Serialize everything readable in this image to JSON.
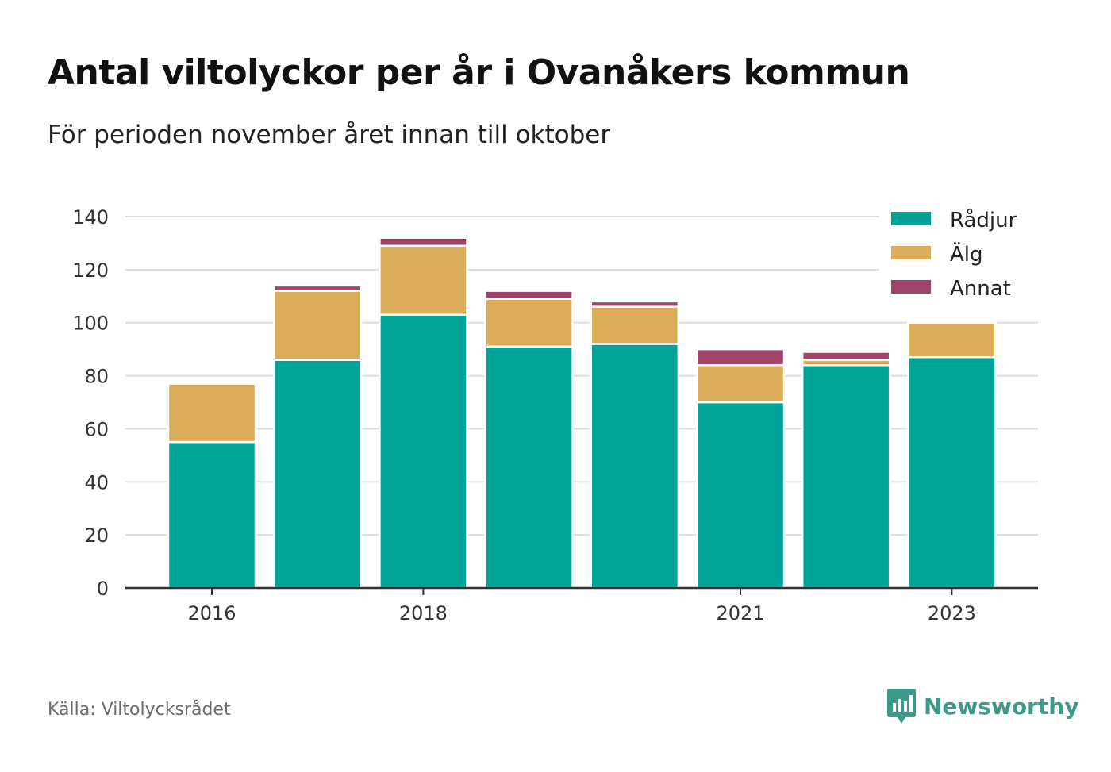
{
  "header": {
    "title": "Antal viltolyckor per år i Ovanåkers kommun",
    "subtitle": "För perioden november året innan till oktober"
  },
  "footer": {
    "source": "Källa: Viltolycksrådet",
    "brand": "Newsworthy",
    "brand_icon": "newsworthy-logo-icon"
  },
  "colors": {
    "radjur": "#00a398",
    "alg": "#dbac59",
    "annat": "#a1426a",
    "grid": "#dddddd",
    "axis": "#333333",
    "brand": "#3d9a8b"
  },
  "chart_data": {
    "type": "bar",
    "stacked": true,
    "categories": [
      "2016",
      "2017",
      "2018",
      "2019",
      "2020",
      "2021",
      "2022",
      "2023"
    ],
    "x_tick_labels": [
      "2016",
      "2018",
      "2021",
      "2023"
    ],
    "series": [
      {
        "name": "Rådjur",
        "color": "#00a398",
        "values": [
          55,
          86,
          103,
          91,
          92,
          70,
          84,
          87
        ]
      },
      {
        "name": "Älg",
        "color": "#dbac59",
        "values": [
          22,
          26,
          26,
          18,
          14,
          14,
          2,
          13
        ]
      },
      {
        "name": "Annat",
        "color": "#a1426a",
        "values": [
          0,
          2,
          3,
          3,
          2,
          6,
          3,
          0
        ]
      }
    ],
    "y_ticks": [
      "0",
      "20",
      "40",
      "60",
      "80",
      "100",
      "120",
      "140"
    ],
    "ylim": [
      0,
      140
    ],
    "grid": true,
    "legend_position": "top-right",
    "xlabel": "",
    "ylabel": ""
  }
}
